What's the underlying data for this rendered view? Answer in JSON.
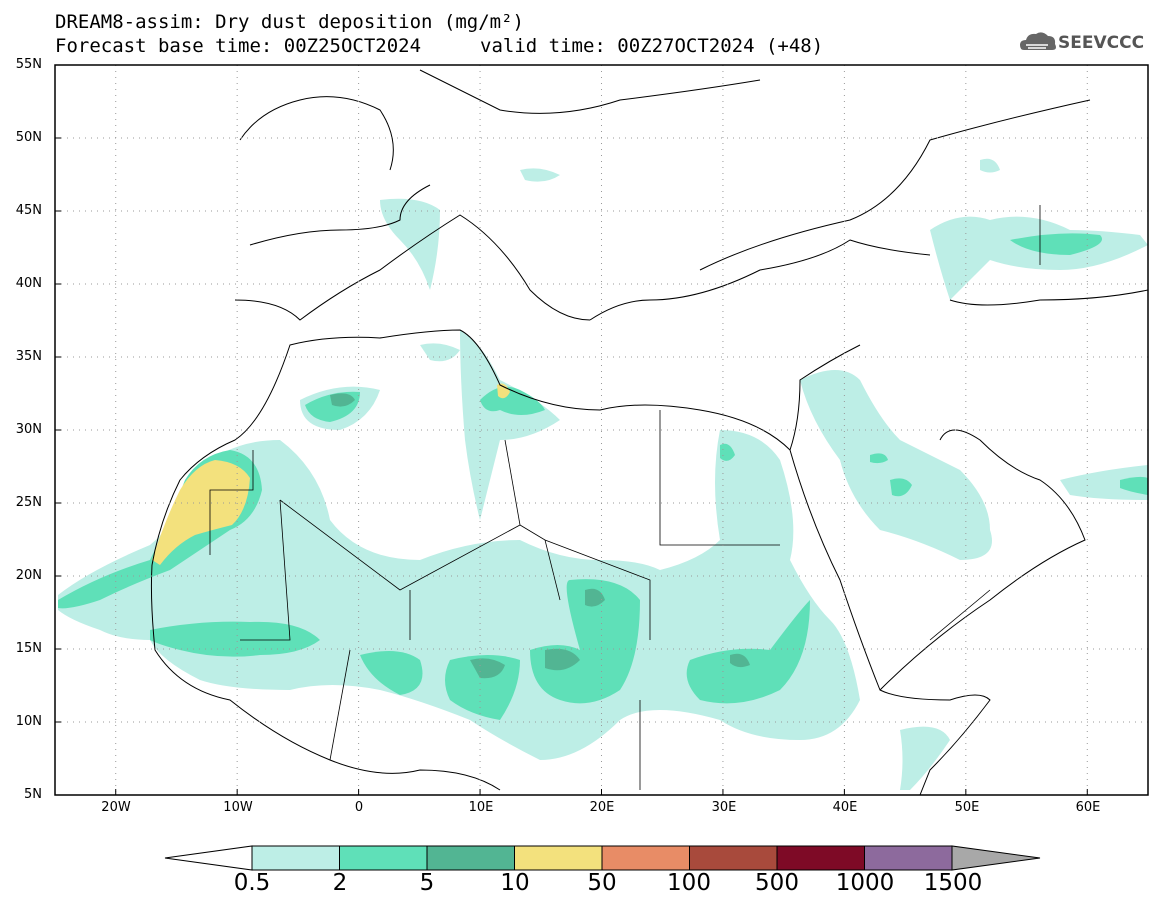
{
  "title": {
    "line1": "DREAM8-assim: Dry dust deposition (mg/m²)",
    "line2": "Forecast base time: 00Z25OCT2024",
    "valid": "valid time: 00Z27OCT2024 (+48)"
  },
  "logo": {
    "text": "SEEVCCC",
    "icon": "cloud-icon"
  },
  "map": {
    "lon_range": [
      -25,
      65
    ],
    "lat_range": [
      5,
      55
    ],
    "lat_labels": [
      "55N",
      "50N",
      "45N",
      "40N",
      "35N",
      "30N",
      "25N",
      "20N",
      "15N",
      "10N",
      "5N"
    ],
    "lon_labels": [
      "20W",
      "10W",
      "0",
      "10E",
      "20E",
      "30E",
      "40E",
      "50E",
      "60E"
    ],
    "grid": "dotted"
  },
  "colorbar": {
    "labels": [
      "0.5",
      "2",
      "5",
      "10",
      "50",
      "100",
      "500",
      "1000",
      "1500"
    ],
    "colors": [
      "#bdeee6",
      "#5fe0b8",
      "#52b593",
      "#f3e17d",
      "#e88c66",
      "#a84a3c",
      "#7e0a26",
      "#8d6a9d"
    ],
    "under_color": "#ffffff",
    "over_color": "#a8a8a8"
  },
  "colors": {
    "level1": "#bdeee6",
    "level2": "#5fe0b8",
    "level3": "#52b593",
    "level4": "#f3e17d",
    "coast": "#000000"
  }
}
